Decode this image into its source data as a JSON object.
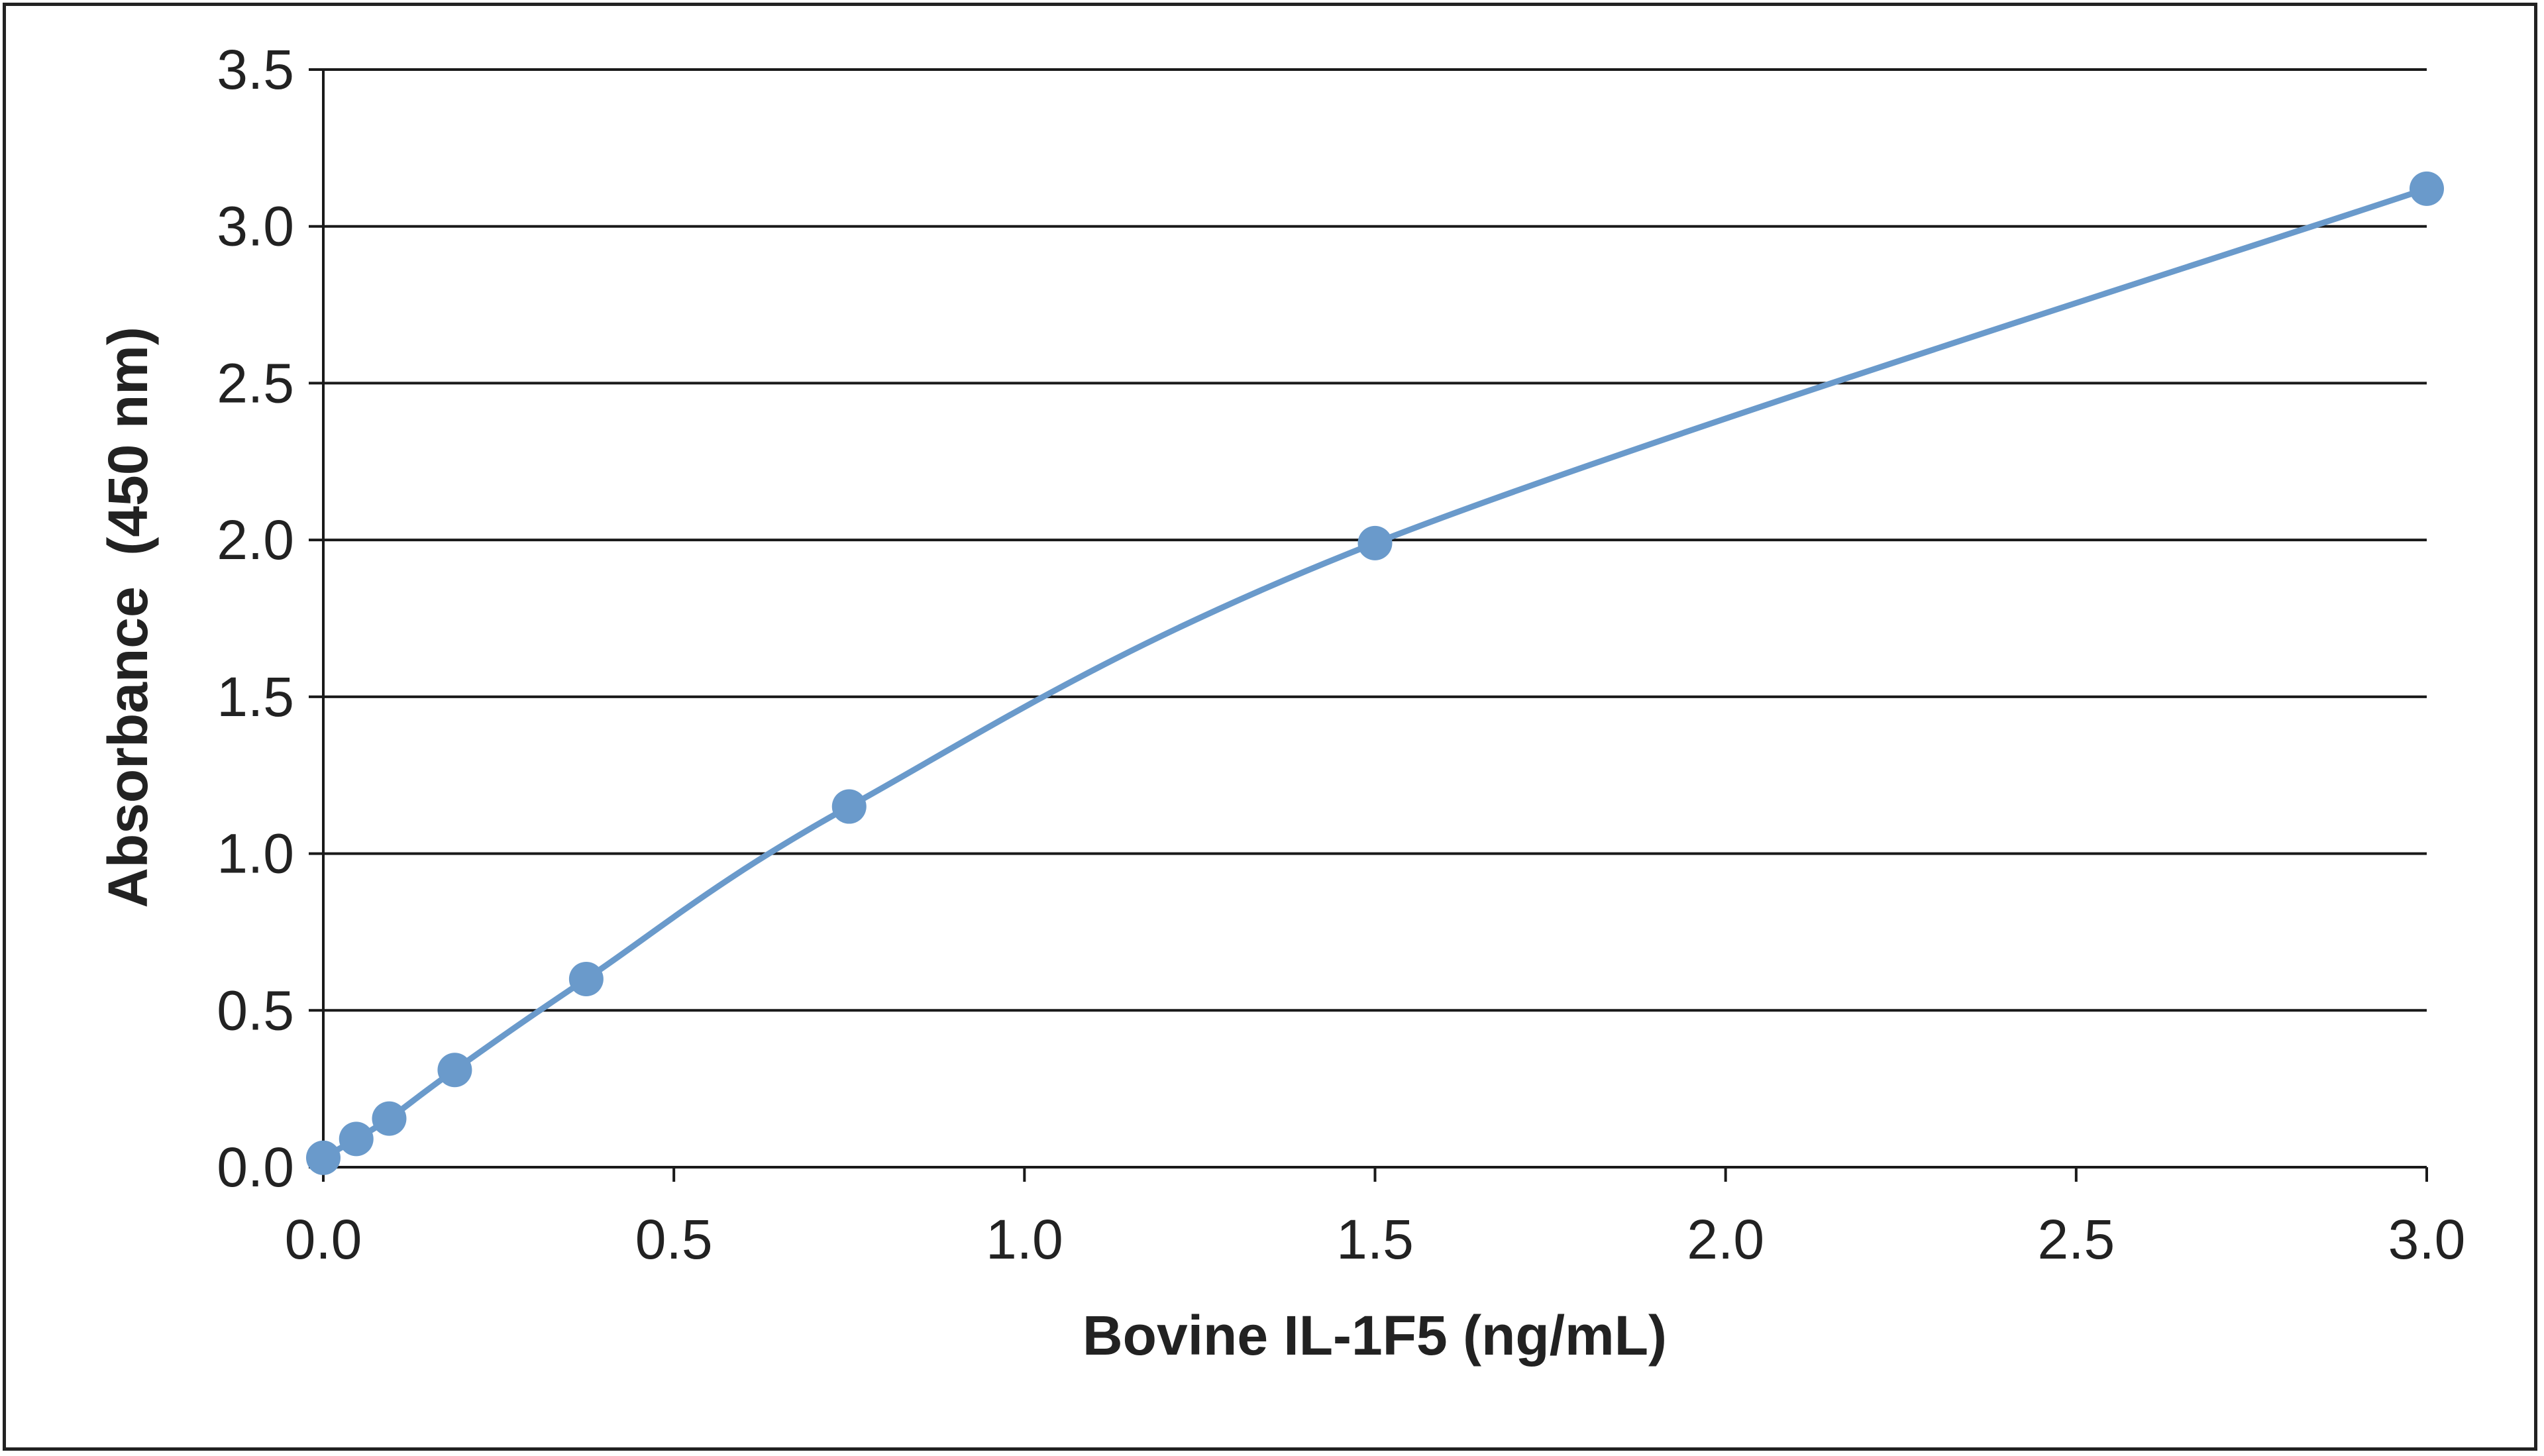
{
  "chart_data": {
    "type": "line",
    "title": "",
    "xlabel": "Bovine IL-1F5 (ng/mL)",
    "ylabel": "Absorbance  (450 nm)",
    "xlim": [
      0,
      3.0
    ],
    "ylim": [
      0,
      3.5
    ],
    "x_ticks": [
      "0.0",
      "0.5",
      "1.0",
      "1.5",
      "2.0",
      "2.5",
      "3.0"
    ],
    "y_ticks": [
      "0.0",
      "0.5",
      "1.0",
      "1.5",
      "2.0",
      "2.5",
      "3.0",
      "3.5"
    ],
    "grid": "horizontal",
    "smooth": true,
    "series": [
      {
        "color": "#6a9acb",
        "points": [
          {
            "x": 0.0,
            "y": 0.03
          },
          {
            "x": 0.047,
            "y": 0.09
          },
          {
            "x": 0.094,
            "y": 0.155
          },
          {
            "x": 0.1875,
            "y": 0.31
          },
          {
            "x": 0.375,
            "y": 0.6
          },
          {
            "x": 0.75,
            "y": 1.15
          },
          {
            "x": 1.5,
            "y": 1.99
          },
          {
            "x": 3.0,
            "y": 3.12
          }
        ]
      }
    ]
  }
}
